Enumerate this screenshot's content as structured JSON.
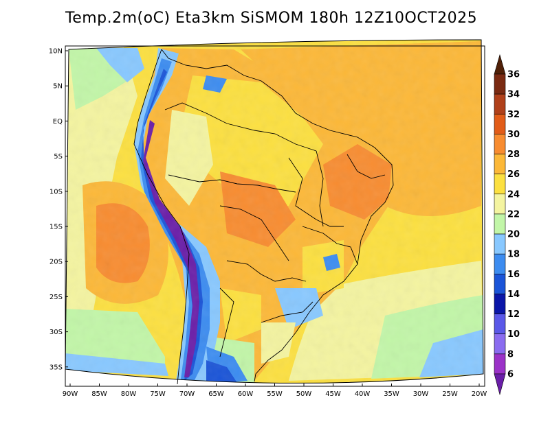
{
  "title": "Temp.2m(oC) Eta3km SiSMOM 180h 12Z10OCT2025",
  "lat_labels": [
    "10N",
    "5N",
    "EQ",
    "5S",
    "10S",
    "15S",
    "20S",
    "25S",
    "30S",
    "35S"
  ],
  "lon_labels": [
    "90W",
    "85W",
    "80W",
    "75W",
    "70W",
    "65W",
    "60W",
    "55W",
    "50W",
    "45W",
    "40W",
    "35W",
    "30W",
    "25W",
    "20W"
  ],
  "colorbar": {
    "levels": [
      6,
      8,
      10,
      12,
      14,
      16,
      18,
      20,
      22,
      24,
      26,
      28,
      30,
      32,
      34,
      36
    ],
    "labels": [
      "6",
      "8",
      "10",
      "12",
      "14",
      "16",
      "18",
      "20",
      "22",
      "24",
      "26",
      "28",
      "30",
      "32",
      "34",
      "36"
    ],
    "colors": [
      "#6a1ea8",
      "#9b32c8",
      "#8a6cf0",
      "#5a58e8",
      "#0a16a8",
      "#1a54d8",
      "#3c8cf0",
      "#88c8ff",
      "#c2f6a8",
      "#f4f4a0",
      "#fce040",
      "#fcb838",
      "#f88c30",
      "#e25c18",
      "#b0401a",
      "#7a2a12",
      "#502008"
    ]
  },
  "legend_semantics": {
    "variable": "2m temperature",
    "unit": "oC",
    "model": "Eta3km SiSMOM",
    "forecast_hour": 180,
    "valid_time": "12Z10OCT2025",
    "domain_lat": [
      "37S",
      "11N"
    ],
    "domain_lon": [
      "90W",
      "20W"
    ]
  }
}
